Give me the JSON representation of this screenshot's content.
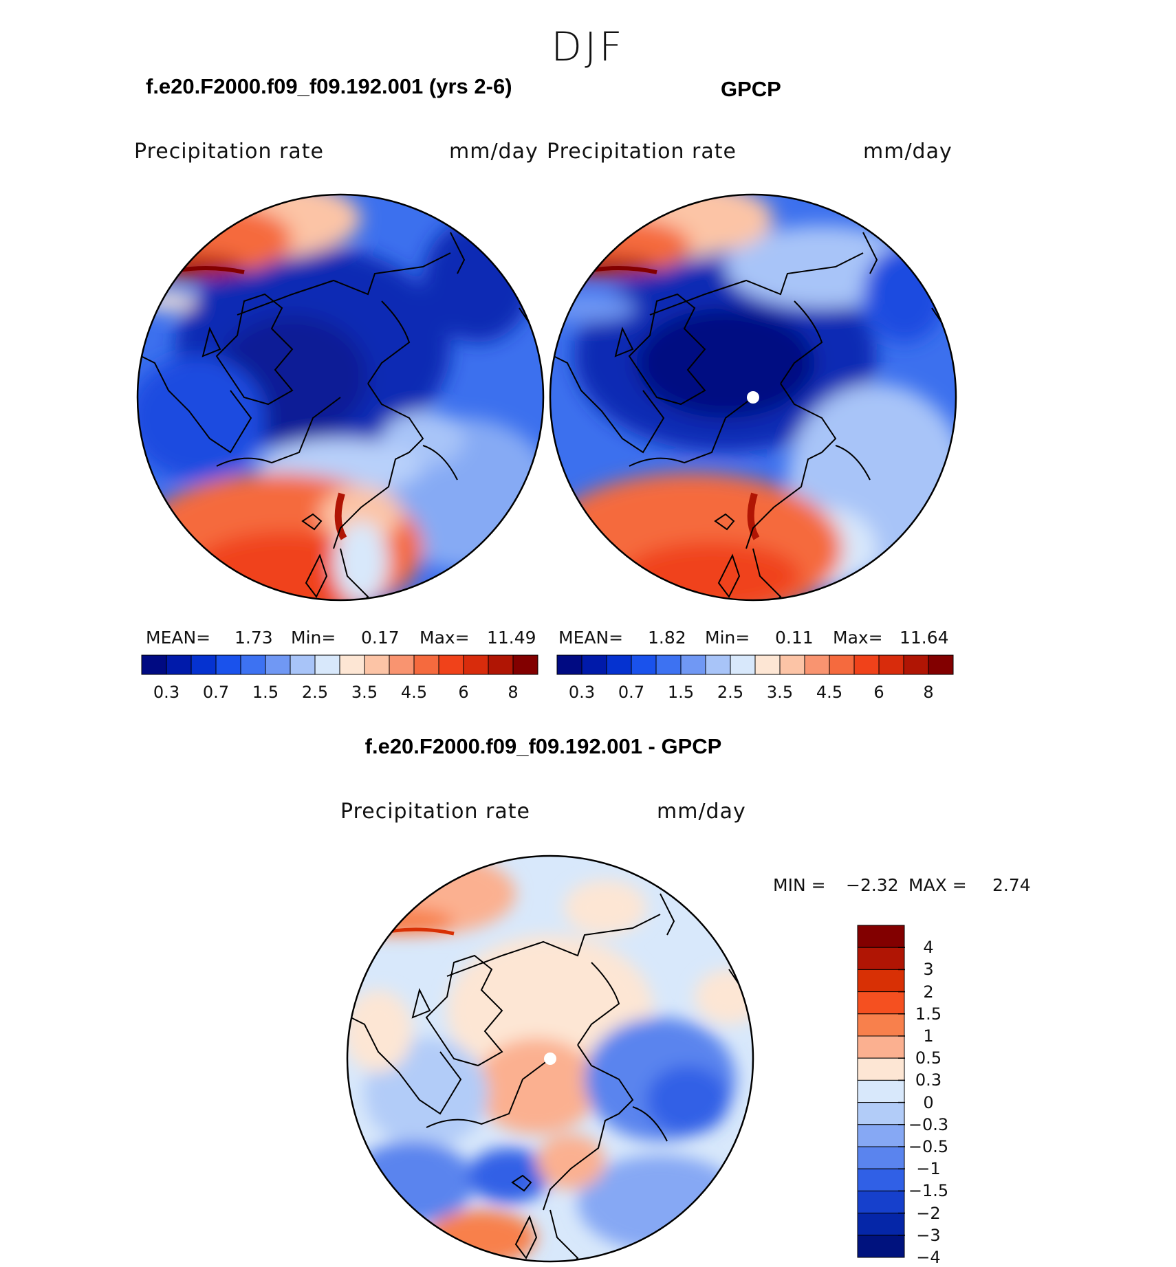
{
  "season": "DJF",
  "panels": {
    "model": {
      "title": "f.e20.F2000.f09_f09.192.001 (yrs 2-6)",
      "variable": "Precipitation  rate",
      "units": "mm/day",
      "stats": {
        "mean_label": "MEAN=",
        "mean": "1.73",
        "min_label": "Min=",
        "min": "0.17",
        "max_label": "Max=",
        "max": "11.49"
      }
    },
    "obs": {
      "title": "GPCP",
      "variable": "Precipitation  rate",
      "units": "mm/day",
      "stats": {
        "mean_label": "MEAN=",
        "mean": "1.82",
        "min_label": "Min=",
        "min": "0.11",
        "max_label": "Max=",
        "max": "11.64"
      }
    },
    "diff": {
      "title": "f.e20.F2000.f09_f09.192.001 - GPCP",
      "variable": "Precipitation  rate",
      "units": "mm/day",
      "stats": {
        "min_label": "MIN =",
        "min": "−2.32",
        "max_label": "MAX =",
        "max": "2.74"
      }
    }
  },
  "colorbars": {
    "abs": {
      "colors": [
        "#000a82",
        "#001aaa",
        "#0532d0",
        "#1a52ec",
        "#3d72f2",
        "#7098f4",
        "#a8c4f8",
        "#d8e8fb",
        "#fde6d4",
        "#fcc4a6",
        "#f99470",
        "#f56a3e",
        "#f0421a",
        "#d82c0c",
        "#b01504",
        "#820000"
      ],
      "tick_labels": [
        "0.3",
        "0.7",
        "1.5",
        "2.5",
        "3.5",
        "4.5",
        "6",
        "8"
      ]
    },
    "diff": {
      "colors": [
        "#820000",
        "#b01504",
        "#d83005",
        "#f55020",
        "#f8804c",
        "#fbb090",
        "#fde6d4",
        "#d8e8fb",
        "#b2ccf8",
        "#86a8f4",
        "#5a84ee",
        "#3060e6",
        "#1640cc",
        "#0526a8",
        "#00127e"
      ],
      "tick_labels": [
        "4",
        "3",
        "2",
        "1.5",
        "1",
        "0.5",
        "0.3",
        "0",
        "−0.3",
        "−0.5",
        "−1",
        "−1.5",
        "−2",
        "−3",
        "−4"
      ]
    }
  },
  "marker_colors": {
    "coast": "#000000",
    "pole": "#ffffff"
  }
}
